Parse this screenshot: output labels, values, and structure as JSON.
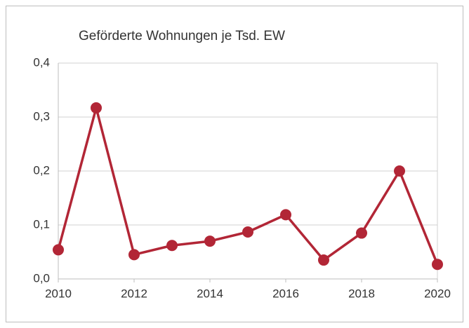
{
  "chart_data": {
    "type": "line",
    "title": "Geförderte Wohnungen je Tsd. EW",
    "x": [
      2010,
      2011,
      2012,
      2013,
      2014,
      2015,
      2016,
      2017,
      2018,
      2019,
      2020
    ],
    "series": [
      {
        "name": "Geförderte Wohnungen je Tsd. EW",
        "color": "#b22636",
        "values": [
          0.054,
          0.317,
          0.045,
          0.062,
          0.07,
          0.087,
          0.119,
          0.035,
          0.085,
          0.2,
          0.027
        ]
      }
    ],
    "xlim": [
      2010,
      2020
    ],
    "xticks": [
      2010,
      2012,
      2014,
      2016,
      2018,
      2020
    ],
    "ylim": [
      0,
      0.4
    ],
    "yticks": [
      {
        "value": 0,
        "label": "0,0"
      },
      {
        "value": 0.1,
        "label": "0,1"
      },
      {
        "value": 0.2,
        "label": "0,2"
      },
      {
        "value": 0.3,
        "label": "0,3"
      },
      {
        "value": 0.4,
        "label": "0,4"
      }
    ],
    "grid": true
  }
}
